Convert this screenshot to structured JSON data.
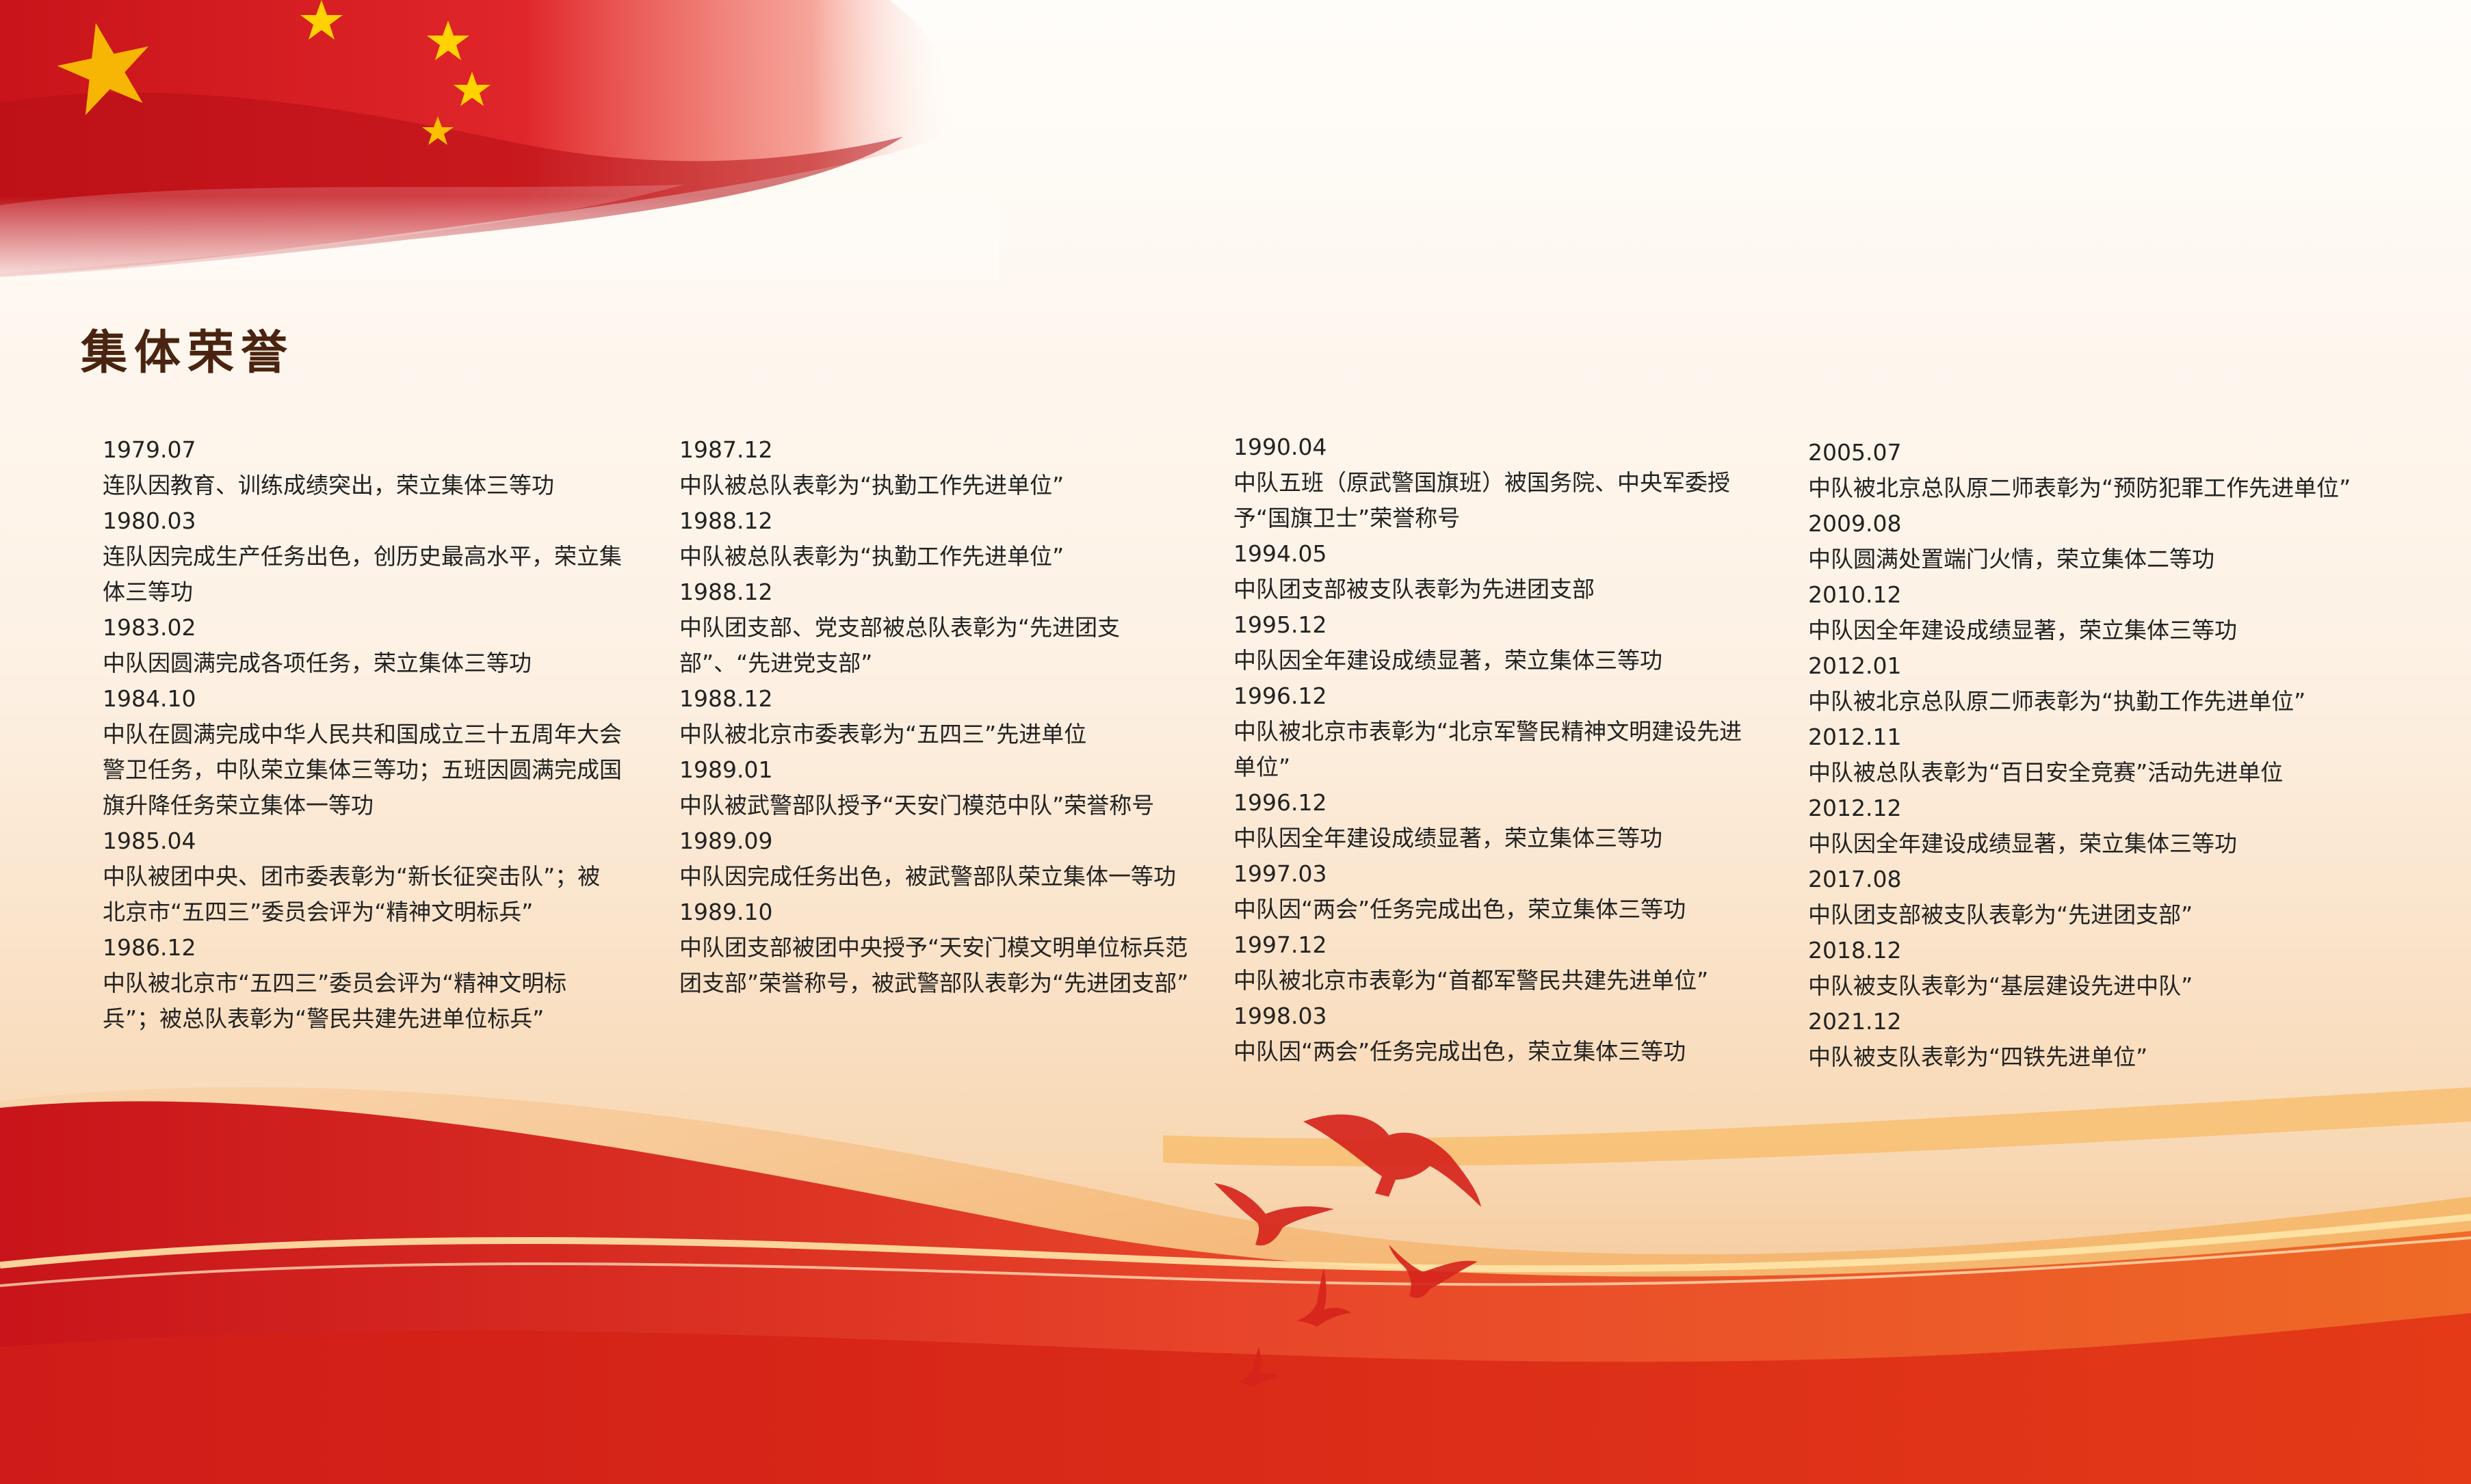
{
  "title": "集体荣誉",
  "colors": {
    "accent_red": "#d6241c",
    "title_brown": "#4a2410",
    "text": "#222222",
    "star_gold": "#ffd200"
  },
  "decoration": {
    "top_left": "flag-icon",
    "bottom": "wave-band",
    "birds": "dove-icon"
  },
  "columns": [
    [
      {
        "year": "1979.07",
        "text": "连队因教育、训练成绩突出，荣立集体三等功"
      },
      {
        "year": "1980.03",
        "text": "连队因完成生产任务出色，创历史最高水平，荣立集体三等功"
      },
      {
        "year": "1983.02",
        "text": "中队因圆满完成各项任务，荣立集体三等功"
      },
      {
        "year": "1984.10",
        "text": "中队在圆满完成中华人民共和国成立三十五周年大会警卫任务，中队荣立集体三等功；五班因圆满完成国旗升降任务荣立集体一等功"
      },
      {
        "year": "1985.04",
        "text": "中队被团中央、团市委表彰为“新长征突击队”；被北京市“五四三”委员会评为“精神文明标兵”"
      },
      {
        "year": "1986.12",
        "text": "中队被北京市“五四三”委员会评为“精神文明标兵”；被总队表彰为“警民共建先进单位标兵”"
      }
    ],
    [
      {
        "year": "1987.12",
        "text": "中队被总队表彰为“执勤工作先进单位”"
      },
      {
        "year": "1988.12",
        "text": "中队被总队表彰为“执勤工作先进单位”"
      },
      {
        "year": "1988.12",
        "text": "中队团支部、党支部被总队表彰为“先进团支部”、“先进党支部”"
      },
      {
        "year": "1988.12",
        "text": "中队被北京市委表彰为“五四三”先进单位"
      },
      {
        "year": "1989.01",
        "text": "中队被武警部队授予“天安门模范中队”荣誉称号"
      },
      {
        "year": "1989.09",
        "text": "中队因完成任务出色，被武警部队荣立集体一等功"
      },
      {
        "year": "1989.10",
        "text": "中队团支部被团中央授予“天安门模文明单位标兵范团支部”荣誉称号，被武警部队表彰为“先进团支部”"
      }
    ],
    [
      {
        "year": "1990.04",
        "text": "中队五班（原武警国旗班）被国务院、中央军委授予“国旗卫士”荣誉称号"
      },
      {
        "year": "1994.05",
        "text": "中队团支部被支队表彰为先进团支部"
      },
      {
        "year": "1995.12",
        "text": "中队因全年建设成绩显著，荣立集体三等功"
      },
      {
        "year": "1996.12",
        "text": "中队被北京市表彰为“北京军警民精神文明建设先进单位”"
      },
      {
        "year": "1996.12",
        "text": "中队因全年建设成绩显著，荣立集体三等功"
      },
      {
        "year": "1997.03",
        "text": "中队因“两会”任务完成出色，荣立集体三等功"
      },
      {
        "year": "1997.12",
        "text": "中队被北京市表彰为“首都军警民共建先进单位”"
      },
      {
        "year": "1998.03",
        "text": "中队因“两会”任务完成出色，荣立集体三等功"
      }
    ],
    [
      {
        "year": "2005.07",
        "text": "中队被北京总队原二师表彰为“预防犯罪工作先进单位”"
      },
      {
        "year": "2009.08",
        "text": "中队圆满处置端门火情，荣立集体二等功"
      },
      {
        "year": "2010.12",
        "text": "中队因全年建设成绩显著，荣立集体三等功"
      },
      {
        "year": "2012.01",
        "text": "中队被北京总队原二师表彰为“执勤工作先进单位”"
      },
      {
        "year": "2012.11",
        "text": "中队被总队表彰为“百日安全竞赛”活动先进单位"
      },
      {
        "year": "2012.12",
        "text": "中队因全年建设成绩显著，荣立集体三等功"
      },
      {
        "year": "2017.08",
        "text": "中队团支部被支队表彰为“先进团支部”"
      },
      {
        "year": "2018.12",
        "text": "中队被支队表彰为“基层建设先进中队”"
      },
      {
        "year": "2021.12",
        "text": "中队被支队表彰为“四铁先进单位”"
      }
    ]
  ]
}
